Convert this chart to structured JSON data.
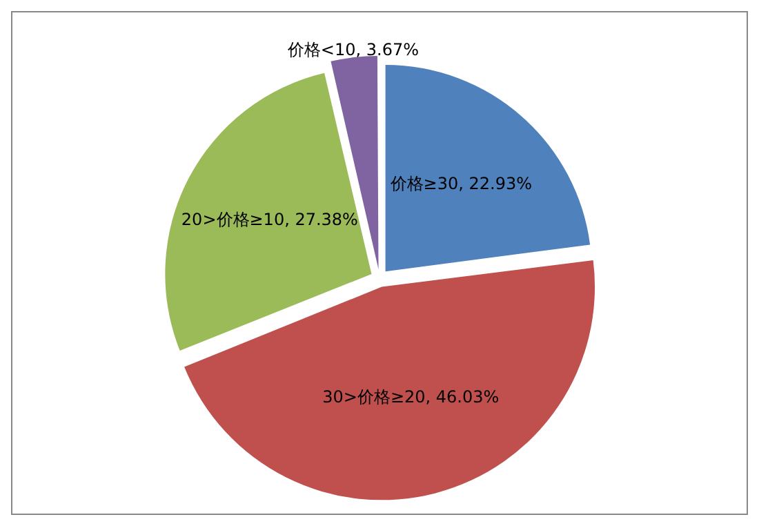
{
  "chart_data": {
    "type": "pie",
    "categories": [
      "价格≥30",
      "30>价格≥20",
      "20>价格≥10",
      "价格<10"
    ],
    "values": [
      22.93,
      46.03,
      27.38,
      3.67
    ],
    "colors": [
      "#4f81bd",
      "#c0504d",
      "#9bbb59",
      "#8064a2"
    ],
    "value_labels": [
      ", 22.93%",
      ", 46.03%",
      ", 27.38%",
      ", 3.67%"
    ],
    "legend": false
  }
}
